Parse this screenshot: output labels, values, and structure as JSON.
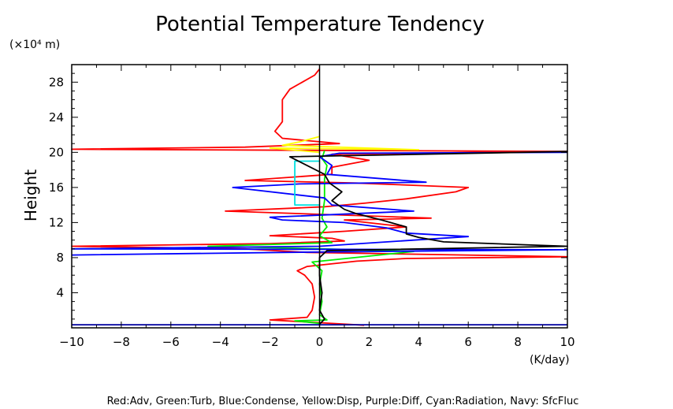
{
  "chart_data": {
    "type": "line",
    "title": "Potential Temperature Tendency",
    "ylabel": "Height",
    "ylabel_units": "(×10⁴ m)",
    "xlabel_units": "(K/day)",
    "xlim": [
      -10,
      10
    ],
    "ylim": [
      0,
      30
    ],
    "x_ticks": [
      -10,
      -8,
      -6,
      -4,
      -2,
      0,
      2,
      4,
      6,
      8,
      10
    ],
    "y_ticks": [
      4,
      8,
      12,
      16,
      20,
      24,
      28
    ],
    "x_tick_labels": [
      "−10",
      "−8",
      "−6",
      "−4",
      "−2",
      "0",
      "2",
      "4",
      "6",
      "8",
      "10"
    ],
    "y_tick_labels": [
      "4",
      "8",
      "12",
      "16",
      "20",
      "24",
      "28"
    ],
    "grid": false,
    "caption": "Red:Adv, Green:Turb, Blue:Condense, Yellow:Disp, Purple:Diff, Cyan:Radiation, Navy: SfcFluc",
    "series": [
      {
        "color": "#ff0000",
        "points": [
          [
            1.8,
            0.3
          ],
          [
            -2,
            0.9
          ],
          [
            -0.5,
            1.2
          ],
          [
            -0.3,
            2.0
          ],
          [
            -0.2,
            3.5
          ],
          [
            -0.3,
            5.0
          ],
          [
            -0.6,
            6.0
          ],
          [
            -0.9,
            6.5
          ],
          [
            -0.5,
            7.0
          ],
          [
            1.5,
            7.6
          ],
          [
            3.5,
            7.9
          ],
          [
            10.5,
            8.1
          ],
          [
            -0.5,
            8.6
          ],
          [
            -3,
            9.0
          ],
          [
            -10,
            9.3
          ],
          [
            -2,
            9.6
          ],
          [
            1,
            9.9
          ],
          [
            0.5,
            10.2
          ],
          [
            -2,
            10.5
          ],
          [
            1,
            11.0
          ],
          [
            3.5,
            11.5
          ],
          [
            1,
            12.3
          ],
          [
            4.5,
            12.5
          ],
          [
            1.5,
            12.8
          ],
          [
            -3.8,
            13.3
          ],
          [
            0.2,
            13.8
          ],
          [
            1.8,
            14.2
          ],
          [
            3.5,
            14.7
          ],
          [
            5.5,
            15.5
          ],
          [
            6,
            16.0
          ],
          [
            1.5,
            16.5
          ],
          [
            -3,
            16.8
          ],
          [
            0.5,
            17.5
          ],
          [
            0.5,
            18.3
          ],
          [
            2,
            19.1
          ],
          [
            0.5,
            19.8
          ],
          [
            10.5,
            20.1
          ],
          [
            -10,
            20.35
          ],
          [
            -3,
            20.6
          ],
          [
            0.8,
            21.0
          ],
          [
            -1.5,
            21.6
          ],
          [
            -1.8,
            22.4
          ],
          [
            -1.5,
            23.5
          ],
          [
            -1.5,
            24.8
          ],
          [
            -1.5,
            26.0
          ],
          [
            -1.2,
            27.2
          ],
          [
            -0.7,
            28.0
          ],
          [
            -0.2,
            28.8
          ],
          [
            0,
            29.5
          ]
        ]
      },
      {
        "color": "#00ee00",
        "points": [
          [
            0,
            0.4
          ],
          [
            0,
            0.5
          ],
          [
            -1,
            0.8
          ],
          [
            0.3,
            0.9
          ],
          [
            0,
            1.5
          ],
          [
            0.1,
            3.0
          ],
          [
            0,
            5.0
          ],
          [
            0.1,
            6.5
          ],
          [
            -0.3,
            7.5
          ],
          [
            3.8,
            8.7
          ],
          [
            0.2,
            9.0
          ],
          [
            -4.5,
            9.3
          ],
          [
            0.5,
            9.7
          ],
          [
            0,
            10.5
          ],
          [
            0.3,
            11.5
          ],
          [
            0.1,
            12.5
          ],
          [
            0.2,
            14.5
          ],
          [
            0.2,
            17.0
          ],
          [
            0.3,
            18.5
          ],
          [
            0.1,
            19.3
          ],
          [
            0.2,
            20.2
          ]
        ]
      },
      {
        "color": "#0000ff",
        "points": [
          [
            -10,
            8.3
          ],
          [
            -1.5,
            8.6
          ],
          [
            10.5,
            8.9
          ],
          [
            -10,
            9.0
          ],
          [
            0,
            9.3
          ],
          [
            6,
            10.4
          ],
          [
            3.5,
            10.8
          ],
          [
            2.7,
            11.4
          ],
          [
            1,
            12.0
          ],
          [
            -1.5,
            12.3
          ],
          [
            -2,
            12.6
          ],
          [
            3.8,
            13.3
          ],
          [
            0.5,
            14.0
          ],
          [
            0.2,
            14.8
          ],
          [
            -3.5,
            16.0
          ],
          [
            -0.8,
            16.4
          ],
          [
            4.3,
            16.6
          ],
          [
            0.3,
            17.5
          ],
          [
            0.5,
            18.5
          ],
          [
            0,
            19.5
          ],
          [
            0.8,
            19.9
          ],
          [
            10.5,
            20.0
          ]
        ]
      },
      {
        "color": "#ffff00",
        "points": [
          [
            0,
            20.0
          ],
          [
            -2,
            20.5
          ],
          [
            4,
            20.3
          ],
          [
            -1.5,
            20.8
          ],
          [
            -0.8,
            21.2
          ],
          [
            0,
            21.8
          ]
        ]
      },
      {
        "color": "#00e0e0",
        "points": [
          [
            0,
            14.0
          ],
          [
            -1,
            14.0
          ],
          [
            -1,
            19.0
          ],
          [
            0,
            19.0
          ]
        ]
      },
      {
        "color": "#000000",
        "points": [
          [
            0,
            0.4
          ],
          [
            0.2,
            1.0
          ],
          [
            0,
            2.0
          ],
          [
            0.1,
            4.0
          ],
          [
            0,
            6.0
          ],
          [
            0,
            8.0
          ],
          [
            0.3,
            8.8
          ],
          [
            10,
            9.3
          ],
          [
            5,
            9.8
          ],
          [
            4,
            10.3
          ],
          [
            3.5,
            10.7
          ],
          [
            3.5,
            11.5
          ],
          [
            2.5,
            12.3
          ],
          [
            1.5,
            13.0
          ],
          [
            1,
            13.5
          ],
          [
            0.5,
            14.5
          ],
          [
            0.9,
            15.5
          ],
          [
            0.4,
            16.5
          ],
          [
            0.2,
            17.5
          ],
          [
            -1.2,
            19.5
          ],
          [
            10.5,
            20.1
          ]
        ]
      },
      {
        "color": "#0000a0",
        "points": [
          [
            -10,
            0.35
          ],
          [
            10.5,
            0.35
          ]
        ]
      }
    ]
  }
}
